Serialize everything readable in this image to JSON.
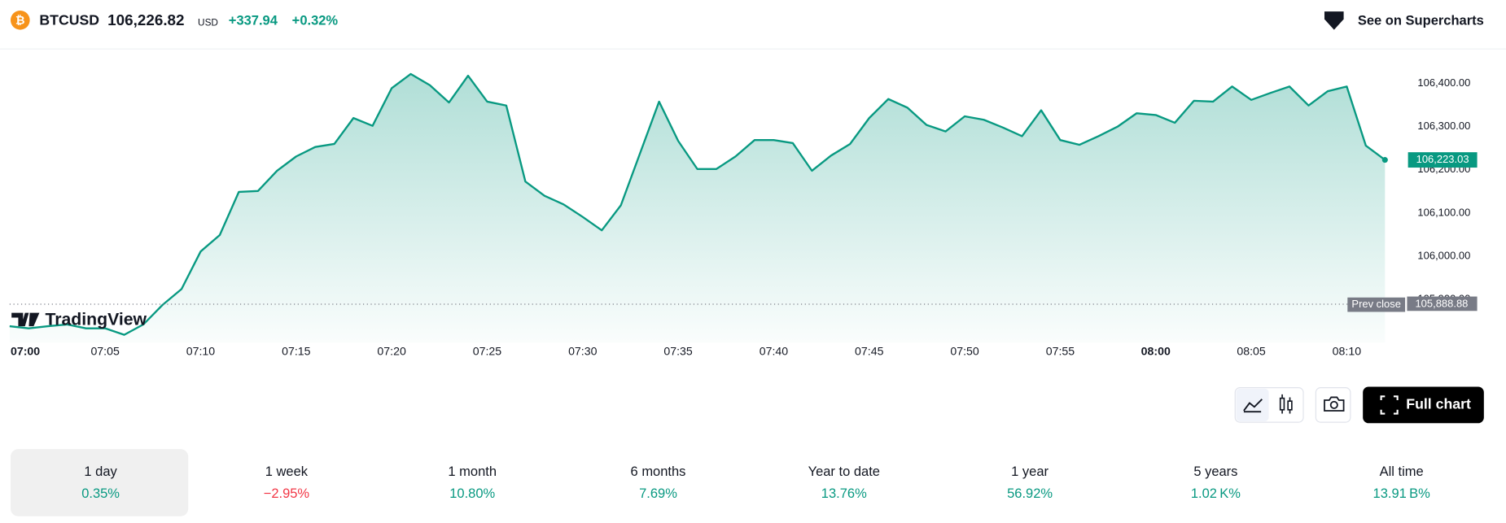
{
  "header": {
    "symbol": "BTCUSD",
    "price": "106,226.82",
    "currency": "USD",
    "change": "+337.94",
    "change_percent": "+0.32%",
    "link": "See on Supercharts"
  },
  "logo": "TradingView",
  "chart_data": {
    "type": "area",
    "x": [
      "07:00",
      "07:01",
      "07:02",
      "07:03",
      "07:04",
      "07:05",
      "07:06",
      "07:07",
      "07:08",
      "07:09",
      "07:10",
      "07:11",
      "07:12",
      "07:13",
      "07:14",
      "07:15",
      "07:16",
      "07:17",
      "07:18",
      "07:19",
      "07:20",
      "07:21",
      "07:22",
      "07:23",
      "07:24",
      "07:25",
      "07:26",
      "07:27",
      "07:28",
      "07:29",
      "07:30",
      "07:31",
      "07:32",
      "07:33",
      "07:34",
      "07:35",
      "07:36",
      "07:37",
      "07:38",
      "07:39",
      "07:40",
      "07:41",
      "07:42",
      "07:43",
      "07:44",
      "07:45",
      "07:46",
      "07:47",
      "07:48",
      "07:49",
      "07:50",
      "07:51",
      "07:52",
      "07:53",
      "07:54",
      "07:55",
      "07:56",
      "07:57",
      "07:58",
      "07:59",
      "08:00",
      "08:01",
      "08:02",
      "08:03",
      "08:04",
      "08:05",
      "08:06",
      "08:07",
      "08:08",
      "08:09",
      "08:10",
      "08:11",
      "08:12"
    ],
    "series": [
      {
        "name": "BTCUSD",
        "color": "#089981",
        "values": [
          105838,
          105833,
          105838,
          105842,
          105833,
          105833,
          105818,
          105842,
          105887,
          105924,
          106011,
          106049,
          106149,
          106151,
          106198,
          106231,
          106253,
          106260,
          106320,
          106302,
          106389,
          106422,
          106396,
          106356,
          106418,
          106358,
          106349,
          106173,
          106140,
          106120,
          106091,
          106060,
          106118,
          106238,
          106358,
          106267,
          106202,
          106202,
          106231,
          106269,
          106269,
          106262,
          106198,
          106233,
          106260,
          106320,
          106364,
          106344,
          106304,
          106289,
          106324,
          106316,
          106298,
          106278,
          106338,
          106269,
          106258,
          106278,
          106300,
          106331,
          106327,
          106309,
          106360,
          106358,
          106393,
          106362,
          106378,
          106393,
          106349,
          106382,
          106393,
          106256,
          106223.03
        ]
      }
    ],
    "ylim": [
      105800,
      106480
    ],
    "yticks": [
      {
        "value": 105900,
        "label": "105,900.00"
      },
      {
        "value": 106000,
        "label": "106,000.00"
      },
      {
        "value": 106100,
        "label": "106,100.00"
      },
      {
        "value": 106200,
        "label": "106,200.00"
      },
      {
        "value": 106300,
        "label": "106,300.00"
      },
      {
        "value": 106400,
        "label": "106,400.00"
      }
    ],
    "xticks": [
      "07:00",
      "07:05",
      "07:10",
      "07:15",
      "07:20",
      "07:25",
      "07:30",
      "07:35",
      "07:40",
      "07:45",
      "07:50",
      "07:55",
      "08:00",
      "08:05",
      "08:10"
    ],
    "price_label": {
      "value": 106223.03,
      "label": "106,223.03"
    },
    "prev_close": {
      "name": "Prev close",
      "value": 105888.88,
      "label": "105,888.88"
    },
    "grid": false
  },
  "toolbar": {
    "full_chart": "Full chart"
  },
  "periods": [
    {
      "label": "1 day",
      "value": "0.35%",
      "color": "#089981",
      "selected": true
    },
    {
      "label": "1 week",
      "value": "−2.95%",
      "color": "#f23645",
      "selected": false
    },
    {
      "label": "1 month",
      "value": "10.80%",
      "color": "#089981",
      "selected": false
    },
    {
      "label": "6 months",
      "value": "7.69%",
      "color": "#089981",
      "selected": false
    },
    {
      "label": "Year to date",
      "value": "13.76%",
      "color": "#089981",
      "selected": false
    },
    {
      "label": "1 year",
      "value": "56.92%",
      "color": "#089981",
      "selected": false
    },
    {
      "label": "5 years",
      "value": "1.02 K%",
      "color": "#089981",
      "selected": false
    },
    {
      "label": "All time",
      "value": "13.91 B%",
      "color": "#089981",
      "selected": false
    }
  ]
}
